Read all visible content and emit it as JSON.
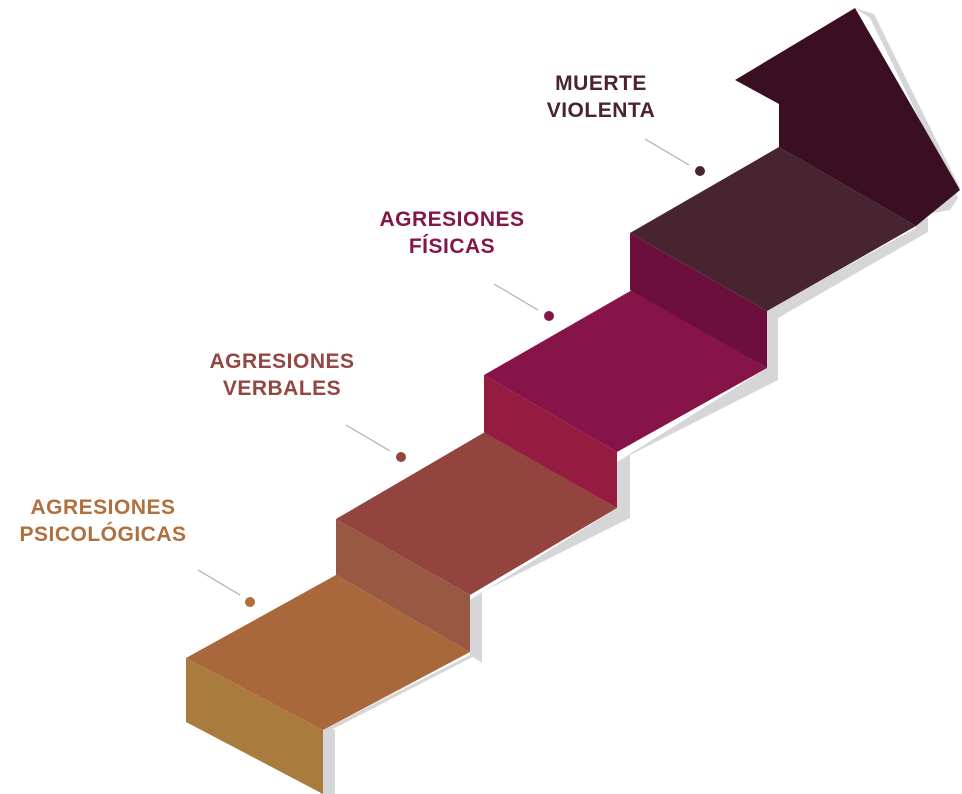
{
  "steps": [
    {
      "lines": [
        "AGRESIONES",
        "PSICOLÓGICAS"
      ],
      "color": "#b06f3c"
    },
    {
      "lines": [
        "AGRESIONES",
        "VERBALES"
      ],
      "color": "#944642"
    },
    {
      "lines": [
        "AGRESIONES",
        "FÍSICAS"
      ],
      "color": "#84164a"
    },
    {
      "lines": [
        "MUERTE",
        "VIOLENTA"
      ],
      "color": "#4a2430"
    }
  ],
  "colors": {
    "step1_front": "#a97c3e",
    "step1_top": "#a9673c",
    "step2_riser": "#985942",
    "step2_top": "#94443f",
    "step3_riser": "#951b41",
    "step3_top": "#861449",
    "step4_riser": "#6c0f3d",
    "step4_top": "#482431",
    "arrow_face": "#3b0f22",
    "shadow": "#d6d6d8"
  }
}
